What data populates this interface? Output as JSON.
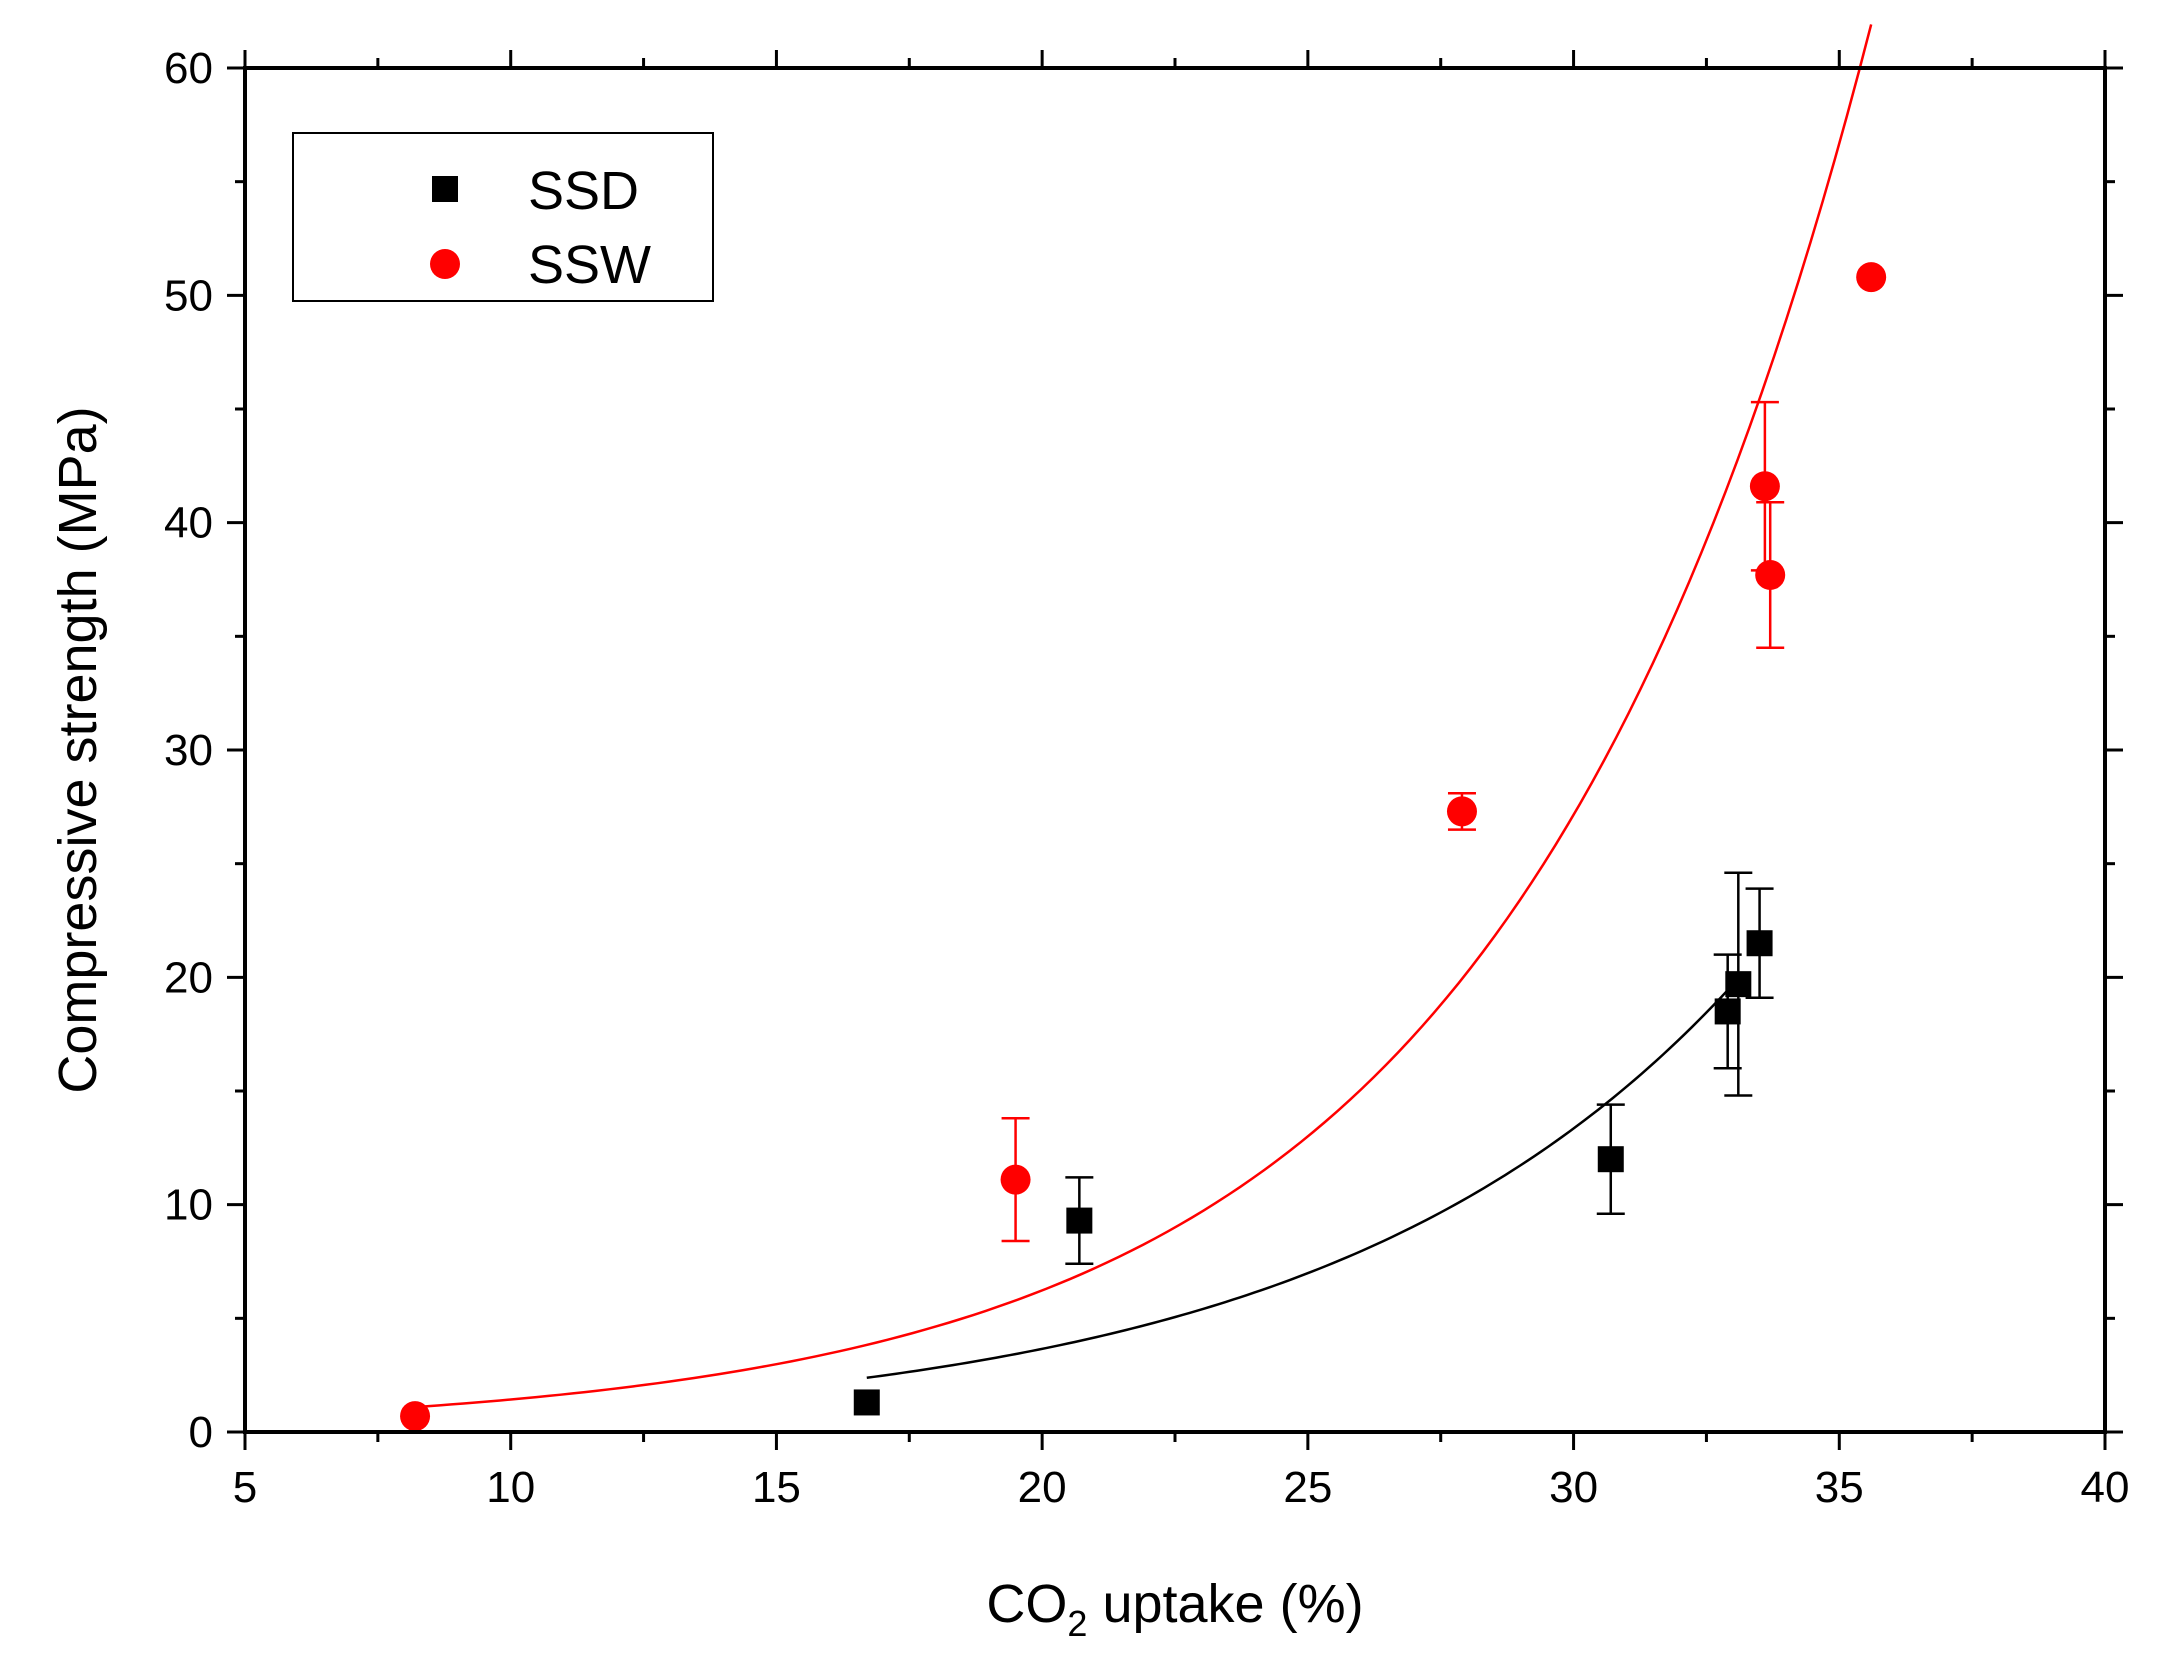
{
  "chart_data": {
    "type": "scatter",
    "xlabel": {
      "prefix": "CO",
      "subscript": "2",
      "suffix": " uptake (%)"
    },
    "ylabel": "Compressive strength (MPa)",
    "xlim": [
      5,
      40
    ],
    "ylim": [
      0,
      60
    ],
    "x_ticks": [
      "5",
      "10",
      "15",
      "20",
      "25",
      "30",
      "35",
      "40"
    ],
    "y_ticks": [
      "0",
      "10",
      "20",
      "30",
      "40",
      "50",
      "60"
    ],
    "legend_position": "top-left",
    "series": [
      {
        "name": "SSD",
        "marker": "square",
        "color": "#000000",
        "points": [
          {
            "x": 16.7,
            "y": 1.3,
            "err": 0
          },
          {
            "x": 20.7,
            "y": 9.3,
            "err": 1.9
          },
          {
            "x": 30.7,
            "y": 12.0,
            "err": 2.4
          },
          {
            "x": 32.9,
            "y": 18.5,
            "err": 2.5
          },
          {
            "x": 33.1,
            "y": 19.7,
            "err": 4.9
          },
          {
            "x": 33.5,
            "y": 21.5,
            "err": 2.4
          }
        ],
        "fit": {
          "type": "exponential",
          "x_range": [
            16.7,
            32.9
          ]
        }
      },
      {
        "name": "SSW",
        "marker": "circle",
        "color": "#ff0000",
        "points": [
          {
            "x": 8.2,
            "y": 0.7,
            "err": 0
          },
          {
            "x": 19.5,
            "y": 11.1,
            "err": 2.7
          },
          {
            "x": 27.9,
            "y": 27.3,
            "err": 0.8
          },
          {
            "x": 33.6,
            "y": 41.6,
            "err": 3.7
          },
          {
            "x": 33.7,
            "y": 37.7,
            "err": 3.2
          },
          {
            "x": 35.6,
            "y": 50.8,
            "err": 0
          }
        ],
        "fit": {
          "type": "exponential",
          "x_range": [
            8.2,
            35.6
          ]
        }
      }
    ]
  }
}
